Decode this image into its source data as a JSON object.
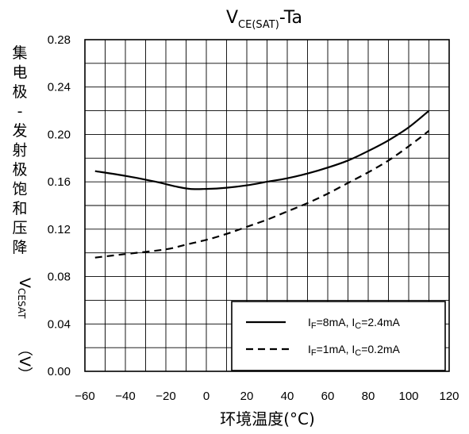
{
  "chart_data": {
    "type": "line",
    "title": {
      "main": "V",
      "sub": "CE(SAT)",
      "tail": "-Ta"
    },
    "xlabel": "环境温度(°C)",
    "ylabel": {
      "cjk": "集电极-发射极饱和压降",
      "symbol": "V",
      "symbol_sub": "CESAT",
      "unit": "（V）"
    },
    "xlim": [
      -60,
      120
    ],
    "ylim": [
      0.0,
      0.28
    ],
    "x_ticks": [
      "-60",
      "-40",
      "-20",
      "0",
      "20",
      "40",
      "60",
      "80",
      "100",
      "120"
    ],
    "y_ticks": [
      "0.00",
      "0.04",
      "0.08",
      "0.12",
      "0.16",
      "0.20",
      "0.24",
      "0.28"
    ],
    "grid": true,
    "legend_position": "bottom-right",
    "series": [
      {
        "name": "IF=8mA, IC=2.4mA",
        "label_parts": [
          "I",
          "F",
          "=8mA, I",
          "C",
          "=2.4mA"
        ],
        "style": "solid",
        "x": [
          -55,
          -40,
          -25,
          -15,
          -8,
          0,
          10,
          20,
          30,
          40,
          50,
          60,
          70,
          80,
          90,
          100,
          110
        ],
        "y": [
          0.169,
          0.165,
          0.16,
          0.156,
          0.154,
          0.154,
          0.155,
          0.157,
          0.16,
          0.163,
          0.167,
          0.172,
          0.178,
          0.186,
          0.195,
          0.206,
          0.22
        ]
      },
      {
        "name": "IF=1mA, IC=0.2mA",
        "label_parts": [
          "I",
          "F",
          "=1mA, I",
          "C",
          "=0.2mA"
        ],
        "style": "dashed",
        "x": [
          -55,
          -40,
          -20,
          -10,
          0,
          10,
          20,
          30,
          40,
          50,
          60,
          70,
          80,
          90,
          100,
          110
        ],
        "y": [
          0.096,
          0.099,
          0.103,
          0.107,
          0.111,
          0.116,
          0.122,
          0.128,
          0.135,
          0.142,
          0.15,
          0.159,
          0.168,
          0.178,
          0.19,
          0.203
        ]
      }
    ]
  }
}
